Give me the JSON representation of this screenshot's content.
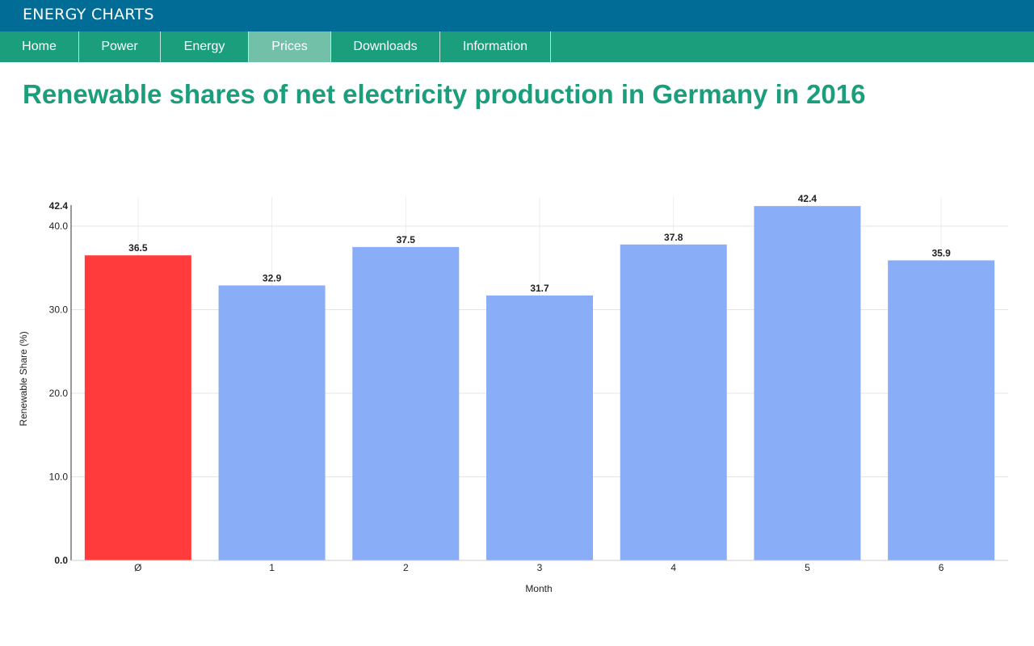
{
  "app": {
    "brand": "ENERGY CHARTS"
  },
  "nav": {
    "items": [
      {
        "label": "Home",
        "active": false
      },
      {
        "label": "Power",
        "active": false
      },
      {
        "label": "Energy",
        "active": false
      },
      {
        "label": "Prices",
        "active": true
      },
      {
        "label": "Downloads",
        "active": false
      },
      {
        "label": "Information",
        "active": false
      }
    ]
  },
  "page": {
    "title": "Renewable shares of net electricity production in Germany in 2016"
  },
  "colors": {
    "header_bg": "#016d96",
    "nav_bg": "#1a9e7c",
    "nav_active_bg": "#73c0a8",
    "title": "#1a9e7c",
    "average_bar": "#ff3b3b",
    "month_bar": "#89adf7"
  },
  "chart_data": {
    "type": "bar",
    "categories": [
      "Ø",
      "1",
      "2",
      "3",
      "4",
      "5",
      "6"
    ],
    "values": [
      36.5,
      32.9,
      37.5,
      31.7,
      37.8,
      42.4,
      35.9
    ],
    "data_labels": [
      "36.5",
      "32.9",
      "37.5",
      "31.7",
      "37.8",
      "42.4",
      "35.9"
    ],
    "highlight_index": 0,
    "xlabel": "Month",
    "ylabel": "Renewable Share (%)",
    "ylim": [
      0,
      42.4
    ],
    "yticks": [
      0,
      10,
      20,
      30,
      40,
      42.4
    ],
    "ytick_labels": [
      "0.0",
      "10.0",
      "20.0",
      "30.0",
      "40.0",
      "42.4"
    ],
    "grid": true,
    "legend": "none"
  }
}
